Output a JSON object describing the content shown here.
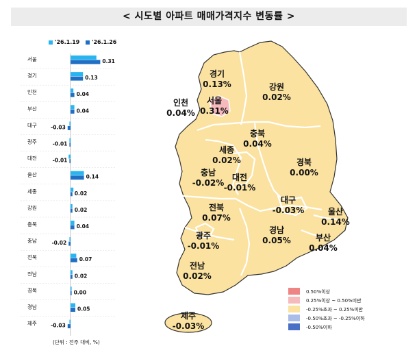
{
  "title": "< 시도별 아파트 매매가격지수 변동률 >",
  "chart_data": {
    "type": "bar",
    "orientation": "horizontal",
    "categories": [
      "서울",
      "경기",
      "인천",
      "부산",
      "대구",
      "광주",
      "대전",
      "울산",
      "세종",
      "강원",
      "충북",
      "충남",
      "전북",
      "전남",
      "경북",
      "경남",
      "제주"
    ],
    "series": [
      {
        "name": "'26.1.19",
        "color": "#29b6f0",
        "values": [
          0.27,
          0.13,
          0.03,
          0.04,
          -0.01,
          -0.01,
          -0.02,
          0.14,
          0.03,
          0.02,
          0.04,
          -0.01,
          0.06,
          0.02,
          0.01,
          0.05,
          -0.01
        ]
      },
      {
        "name": "'26.1.26",
        "color": "#1f6fc4",
        "values": [
          0.31,
          0.13,
          0.04,
          0.04,
          -0.03,
          -0.01,
          -0.01,
          0.14,
          0.02,
          0.02,
          0.04,
          -0.02,
          0.07,
          0.02,
          0.0,
          0.05,
          -0.03
        ]
      }
    ],
    "value_labels": [
      "0.31",
      "0.13",
      "0.04",
      "0.04",
      "-0.03",
      "-0.01",
      "-0.01",
      "0.14",
      "0.02",
      "0.02",
      "0.04",
      "-0.02",
      "0.07",
      "0.02",
      "0.00",
      "0.05",
      "-0.03"
    ],
    "unit_note": "(단위 : 전주 대비, %)"
  },
  "map": {
    "regions": [
      {
        "name": "경기",
        "value": "0.13%"
      },
      {
        "name": "강원",
        "value": "0.02%"
      },
      {
        "name": "인천",
        "value": "0.04%"
      },
      {
        "name": "서울",
        "value": "0.31%"
      },
      {
        "name": "충북",
        "value": "0.04%"
      },
      {
        "name": "세종",
        "value": "0.02%"
      },
      {
        "name": "경북",
        "value": "0.00%"
      },
      {
        "name": "충남",
        "value": "-0.02%"
      },
      {
        "name": "대전",
        "value": "-0.01%"
      },
      {
        "name": "대구",
        "value": "-0.03%"
      },
      {
        "name": "울산",
        "value": "0.14%"
      },
      {
        "name": "전북",
        "value": "0.07%"
      },
      {
        "name": "경남",
        "value": "0.05%"
      },
      {
        "name": "부산",
        "value": "0.04%"
      },
      {
        "name": "광주",
        "value": "-0.01%"
      },
      {
        "name": "전남",
        "value": "0.02%"
      },
      {
        "name": "제주",
        "value": "-0.03%"
      }
    ],
    "legend": [
      {
        "label": "0.50%이상",
        "color": "#ee8484"
      },
      {
        "label": "0.25%이상 ~ 0.50%미만",
        "color": "#f6b9bc"
      },
      {
        "label": "-0.25%초과 ~ 0.25%미만",
        "color": "#fbe2a0"
      },
      {
        "label": "-0.50%초과 ~ -0.25%이하",
        "color": "#a9bde8"
      },
      {
        "label": "-0.50%이하",
        "color": "#4a6fc6"
      }
    ],
    "land_color": "#fbe2a0",
    "border_color": "#ffffff",
    "outline_color": "#333333"
  }
}
